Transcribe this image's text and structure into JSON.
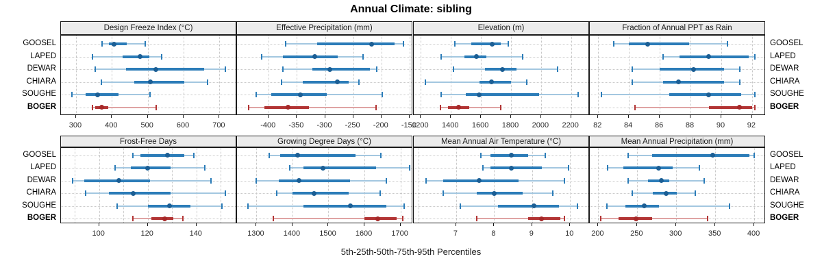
{
  "title": "Annual Climate: sibling",
  "xlabel": "5th-25th-50th-75th-95th Percentiles",
  "categories": [
    "GOOSEL",
    "LAPED",
    "DEWAR",
    "CHIARA",
    "SOUGHE",
    "BOGER"
  ],
  "highlight_category": "BOGER",
  "percentile_labels": [
    "5th",
    "25th",
    "50th",
    "75th",
    "95th"
  ],
  "colors": {
    "blue_light": "#a3c7e0",
    "blue_bar": "#2b7cb8",
    "blue_dot": "#1b5e94",
    "red_light": "#dfa3a3",
    "red_bar": "#b23434",
    "red_dot": "#a62828",
    "strip_bg": "#ececec",
    "panel_border": "#1a1a1a",
    "grid": "#c4c4c4"
  },
  "chart_data": {
    "type": "percentile_dotplot",
    "legend_position": "none",
    "grid": "dotted",
    "panels": [
      {
        "title": "Design Freeze Index (°C)",
        "xlim": [
          260,
          747
        ],
        "ticks": [
          300,
          400,
          500,
          600,
          700
        ],
        "gridlines": [
          300,
          400,
          500,
          600,
          700
        ],
        "series": [
          {
            "name": "GOOSEL",
            "values": [
              373,
              392,
              407,
              441,
              493
            ]
          },
          {
            "name": "LAPED",
            "values": [
              345,
              430,
              479,
              505,
              539
            ]
          },
          {
            "name": "DEWAR",
            "values": [
              353,
              440,
              522,
              657,
              717
            ]
          },
          {
            "name": "CHIARA",
            "values": [
              371,
              462,
              507,
              601,
              667
            ]
          },
          {
            "name": "SOUGHE",
            "values": [
              289,
              327,
              360,
              419,
              507
            ]
          },
          {
            "name": "BOGER",
            "values": [
              345,
              354,
              371,
              390,
              523
            ]
          }
        ]
      },
      {
        "title": "Effective Precipitation (mm)",
        "xlim": [
          -455,
          -145
        ],
        "ticks": [
          -400,
          -350,
          -300,
          -250,
          -200,
          -150
        ],
        "gridlines": [
          -400,
          -350,
          -300,
          -250,
          -200,
          -150
        ],
        "series": [
          {
            "name": "GOOSEL",
            "values": [
              -370,
              -314,
              -217,
              -176,
              -161
            ]
          },
          {
            "name": "LAPED",
            "values": [
              -412,
              -375,
              -318,
              -277,
              -232
            ]
          },
          {
            "name": "DEWAR",
            "values": [
              -375,
              -323,
              -291,
              -220,
              -208
            ]
          },
          {
            "name": "CHIARA",
            "values": [
              -377,
              -340,
              -278,
              -258,
              -240
            ]
          },
          {
            "name": "SOUGHE",
            "values": [
              -422,
              -395,
              -344,
              -297,
              -198
            ]
          },
          {
            "name": "BOGER",
            "values": [
              -435,
              -407,
              -366,
              -329,
              -210
            ]
          }
        ]
      },
      {
        "title": "Elevation (m)",
        "xlim": [
          1157,
          2320
        ],
        "ticks": [
          1200,
          1400,
          1600,
          1800,
          2000,
          2200
        ],
        "gridlines": [
          1200,
          1400,
          1600,
          1800,
          2000,
          2200
        ],
        "series": [
          {
            "name": "GOOSEL",
            "values": [
              1425,
              1537,
              1676,
              1731,
              1783
            ]
          },
          {
            "name": "LAPED",
            "values": [
              1336,
              1492,
              1572,
              1634,
              1878
            ]
          },
          {
            "name": "DEWAR",
            "values": [
              1418,
              1627,
              1742,
              1836,
              2109
            ]
          },
          {
            "name": "CHIARA",
            "values": [
              1231,
              1589,
              1669,
              1798,
              1903
            ]
          },
          {
            "name": "SOUGHE",
            "values": [
              1333,
              1500,
              1589,
              1985,
              2246
            ]
          },
          {
            "name": "BOGER",
            "values": [
              1330,
              1380,
              1450,
              1520,
              1730
            ]
          }
        ]
      },
      {
        "title": "Fraction of Annual PPT as Rain",
        "xlim": [
          81.5,
          92.85
        ],
        "ticks": [
          82,
          84,
          86,
          88,
          90,
          92
        ],
        "gridlines": [
          82,
          84,
          86,
          88,
          90,
          92
        ],
        "series": [
          {
            "name": "GOOSEL",
            "values": [
              83,
              84,
              85.2,
              87.9,
              90.4
            ]
          },
          {
            "name": "LAPED",
            "values": [
              86.2,
              87.3,
              89.2,
              91.8,
              92.2
            ]
          },
          {
            "name": "DEWAR",
            "values": [
              84.2,
              86,
              88.2,
              90.2,
              91.2
            ]
          },
          {
            "name": "CHIARA",
            "values": [
              84.2,
              86.2,
              87.2,
              90.2,
              91.2
            ]
          },
          {
            "name": "SOUGHE",
            "values": [
              82.2,
              86.6,
              89.2,
              91.3,
              92.2
            ]
          },
          {
            "name": "BOGER",
            "values": [
              84.4,
              89.2,
              91.2,
              92,
              92.2
            ]
          }
        ]
      },
      {
        "title": "Frost-Free Days",
        "xlim": [
          84.6,
          156.4
        ],
        "ticks": [
          100,
          120,
          140
        ],
        "gridlines": [
          90,
          100,
          110,
          120,
          130,
          140,
          150
        ],
        "series": [
          {
            "name": "GOOSEL",
            "values": [
              114,
              117,
              128,
              135,
              139
            ]
          },
          {
            "name": "LAPED",
            "values": [
              106.5,
              113,
              120,
              129.5,
              143.5
            ]
          },
          {
            "name": "DEWAR",
            "values": [
              89,
              94,
              108,
              121,
              146
            ]
          },
          {
            "name": "CHIARA",
            "values": [
              94.5,
              104,
              114,
              129.5,
              152
            ]
          },
          {
            "name": "SOUGHE",
            "values": [
              107.5,
              120,
              129,
              137.5,
              150.5
            ]
          },
          {
            "name": "BOGER",
            "values": [
              114,
              121.5,
              127,
              130.5,
              134.5
            ]
          }
        ]
      },
      {
        "title": "Growing Degree Days (°C)",
        "xlim": [
          1248,
          1733
        ],
        "ticks": [
          1300,
          1400,
          1500,
          1600,
          1700
        ],
        "gridlines": [
          1300,
          1400,
          1500,
          1600,
          1700
        ],
        "series": [
          {
            "name": "GOOSEL",
            "values": [
              1335,
              1366,
              1414,
              1576,
              1645
            ]
          },
          {
            "name": "LAPED",
            "values": [
              1392,
              1430,
              1485,
              1633,
              1726
            ]
          },
          {
            "name": "DEWAR",
            "values": [
              1300,
              1363,
              1418,
              1560,
              1660
            ]
          },
          {
            "name": "CHIARA",
            "values": [
              1356,
              1400,
              1461,
              1557,
              1644
            ]
          },
          {
            "name": "SOUGHE",
            "values": [
              1277,
              1430,
              1560,
              1660,
              1710
            ]
          },
          {
            "name": "BOGER",
            "values": [
              1347,
              1600,
              1636,
              1690,
              1707
            ]
          }
        ]
      },
      {
        "title": "Mean Annual Air Temperature (°C)",
        "xlim": [
          5.9,
          10.5
        ],
        "ticks": [
          7,
          8,
          9,
          10
        ],
        "gridlines": [
          6,
          7,
          8,
          9,
          10
        ],
        "series": [
          {
            "name": "GOOSEL",
            "values": [
              7.65,
              7.9,
              8.45,
              8.9,
              9.35
            ]
          },
          {
            "name": "LAPED",
            "values": [
              7.7,
              7.9,
              8.45,
              9.25,
              9.95
            ]
          },
          {
            "name": "DEWAR",
            "values": [
              6.2,
              6.65,
              7.6,
              8.65,
              9.85
            ]
          },
          {
            "name": "CHIARA",
            "values": [
              6.65,
              7.55,
              8,
              8.75,
              9.55
            ]
          },
          {
            "name": "SOUGHE",
            "values": [
              7.1,
              8.1,
              9.05,
              9.7,
              10.2
            ]
          },
          {
            "name": "BOGER",
            "values": [
              7.55,
              8.9,
              9.25,
              9.75,
              9.85
            ]
          }
        ]
      },
      {
        "title": "Mean Annual Precipitation (mm)",
        "xlim": [
          190,
          414
        ],
        "ticks": [
          200,
          250,
          300,
          350,
          400
        ],
        "gridlines": [
          200,
          250,
          300,
          350,
          400
        ],
        "series": [
          {
            "name": "GOOSEL",
            "values": [
              238,
              269,
              347,
              394,
              400
            ]
          },
          {
            "name": "LAPED",
            "values": [
              212,
              232,
              277,
              295,
              330
            ]
          },
          {
            "name": "DEWAR",
            "values": [
              238,
              264,
              281,
              291,
              336
            ]
          },
          {
            "name": "CHIARA",
            "values": [
              244,
              270,
              287,
              301,
              324
            ]
          },
          {
            "name": "SOUGHE",
            "values": [
              211,
              235,
              259,
              278,
              368
            ]
          },
          {
            "name": "BOGER",
            "values": [
              203,
              226,
              248,
              269,
              340
            ]
          }
        ]
      }
    ]
  }
}
